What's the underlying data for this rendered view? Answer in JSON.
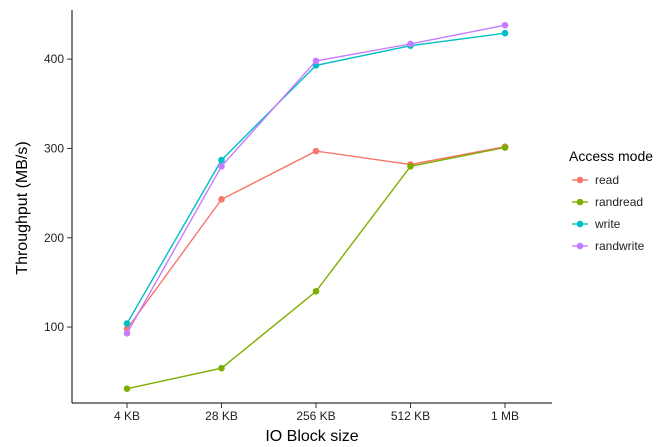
{
  "chart_data": {
    "type": "line",
    "title": "",
    "xlabel": "IO Block size",
    "ylabel": "Throughput (MB/s)",
    "categories": [
      "4 KB",
      "28 KB",
      "256 KB",
      "512 KB",
      "1 MB"
    ],
    "ylim": [
      15,
      455
    ],
    "yticks": [
      100,
      200,
      300,
      400
    ],
    "grid": false,
    "legend": {
      "title": "Access mode",
      "position": "right"
    },
    "series": [
      {
        "name": "read",
        "color": "#F8766D",
        "values": [
          98,
          243,
          297,
          282,
          302
        ]
      },
      {
        "name": "randread",
        "color": "#7CAE00",
        "values": [
          31,
          54,
          140,
          280,
          301
        ]
      },
      {
        "name": "write",
        "color": "#00BFC4",
        "values": [
          104,
          287,
          393,
          415,
          429
        ]
      },
      {
        "name": "randwrite",
        "color": "#C77CFF",
        "values": [
          93,
          280,
          398,
          417,
          438
        ]
      }
    ]
  }
}
